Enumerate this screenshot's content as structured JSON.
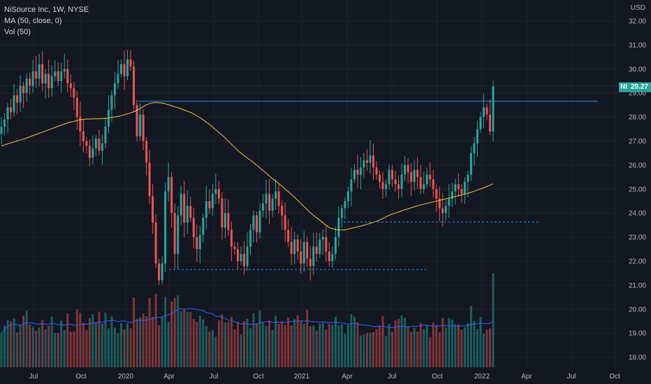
{
  "header": {
    "title": "NiSource Inc, 1W, NYSE",
    "ma_label": "MA (50, close, 0)",
    "vol_label": "Vol (50)",
    "currency": "USD"
  },
  "price_tag": {
    "symbol": "NI",
    "value": "29.27"
  },
  "colors": {
    "background": "#131722",
    "up": "#26a69a",
    "down": "#ef5350",
    "ma": "#f5c242",
    "vol_ma": "#2962ff",
    "resistance": "#2196f3",
    "support": "#2196f3",
    "grid": "#1e2230"
  },
  "chart_data": {
    "type": "candlestick",
    "interval": "1W",
    "symbol": "NI",
    "exchange": "NYSE",
    "y_ticks": [
      18.0,
      19.0,
      20.0,
      21.0,
      22.0,
      23.0,
      24.0,
      25.0,
      26.0,
      27.0,
      28.0,
      29.0,
      30.0,
      31.0,
      32.0
    ],
    "x_ticks": [
      "Jul",
      "Oct",
      "2020",
      "Apr",
      "Jul",
      "Oct",
      "2021",
      "Apr",
      "Jul",
      "Oct",
      "2022",
      "Apr",
      "Jul",
      "Oct"
    ],
    "last_price": 29.27,
    "grid": true,
    "ohlc_close": [
      27.6,
      27.9,
      28.4,
      28.2,
      28.9,
      28.6,
      29.3,
      29.0,
      29.6,
      29.3,
      29.9,
      29.6,
      30.2,
      29.4,
      29.8,
      29.2,
      29.7,
      29.9,
      29.5,
      29.9,
      30.0,
      29.4,
      29.2,
      28.8,
      28.0,
      27.4,
      27.0,
      26.8,
      26.3,
      26.7,
      27.1,
      26.6,
      26.9,
      27.6,
      28.3,
      28.9,
      29.4,
      29.8,
      30.2,
      29.7,
      30.4,
      30.1,
      28.5,
      27.2,
      28.1,
      27.0,
      26.1,
      24.7,
      23.6,
      21.9,
      21.2,
      21.9,
      24.9,
      25.5,
      24.0,
      22.3,
      23.9,
      24.8,
      23.6,
      24.3,
      23.8,
      23.0,
      22.5,
      23.1,
      23.8,
      24.5,
      24.2,
      24.8,
      25.0,
      24.6,
      23.4,
      24.0,
      23.3,
      22.6,
      22.5,
      22.0,
      22.3,
      21.8,
      22.6,
      23.3,
      23.9,
      23.2,
      24.1,
      24.4,
      24.8,
      24.1,
      24.6,
      24.9,
      24.3,
      23.9,
      23.3,
      22.8,
      22.3,
      22.9,
      22.4,
      21.9,
      22.8,
      22.1,
      21.8,
      22.6,
      22.3,
      22.9,
      23.0,
      22.4,
      22.0,
      22.3,
      23.0,
      23.8,
      24.2,
      24.5,
      24.9,
      25.4,
      25.8,
      25.6,
      25.9,
      26.2,
      26.1,
      26.4,
      25.9,
      25.6,
      25.3,
      25.0,
      25.2,
      25.8,
      25.4,
      25.2,
      25.0,
      25.6,
      26.0,
      25.7,
      25.3,
      25.8,
      25.5,
      25.0,
      25.2,
      25.6,
      25.4,
      25.0,
      24.6,
      24.2,
      24.0,
      24.3,
      24.6,
      24.9,
      25.2,
      25.0,
      24.8,
      25.3,
      25.6,
      26.5,
      26.9,
      27.5,
      28.0,
      28.4,
      28.1,
      27.4,
      29.27
    ],
    "ma50": [
      26.8,
      26.85,
      26.9,
      26.95,
      27.0,
      27.05,
      27.1,
      27.16,
      27.22,
      27.28,
      27.34,
      27.4,
      27.46,
      27.52,
      27.58,
      27.64,
      27.7,
      27.76,
      27.8,
      27.84,
      27.88,
      27.9,
      27.92,
      27.92,
      27.93,
      27.93,
      27.94,
      27.95,
      27.97,
      28.0,
      28.03,
      28.07,
      28.12,
      28.17,
      28.22,
      28.3,
      28.4,
      28.5,
      28.56,
      28.6,
      28.6,
      28.58,
      28.55,
      28.5,
      28.45,
      28.4,
      28.34,
      28.28,
      28.22,
      28.15,
      28.06,
      27.96,
      27.85,
      27.73,
      27.6,
      27.46,
      27.32,
      27.18,
      27.02,
      26.86,
      26.7,
      26.55,
      26.42,
      26.3,
      26.18,
      26.05,
      25.92,
      25.78,
      25.64,
      25.5,
      25.37,
      25.24,
      25.1,
      24.96,
      24.82,
      24.68,
      24.52,
      24.36,
      24.2,
      24.04,
      23.9,
      23.78,
      23.65,
      23.52,
      23.4,
      23.35,
      23.3,
      23.3,
      23.3,
      23.34,
      23.38,
      23.42,
      23.45,
      23.5,
      23.55,
      23.6,
      23.65,
      23.72,
      23.8,
      23.88,
      23.95,
      24.0,
      24.06,
      24.12,
      24.17,
      24.22,
      24.27,
      24.32,
      24.36,
      24.4,
      24.44,
      24.48,
      24.52,
      24.56,
      24.6,
      24.64,
      24.68,
      24.72,
      24.76,
      24.8,
      24.85,
      24.9,
      24.96,
      25.02,
      25.08,
      25.15,
      25.22
    ]
  }
}
